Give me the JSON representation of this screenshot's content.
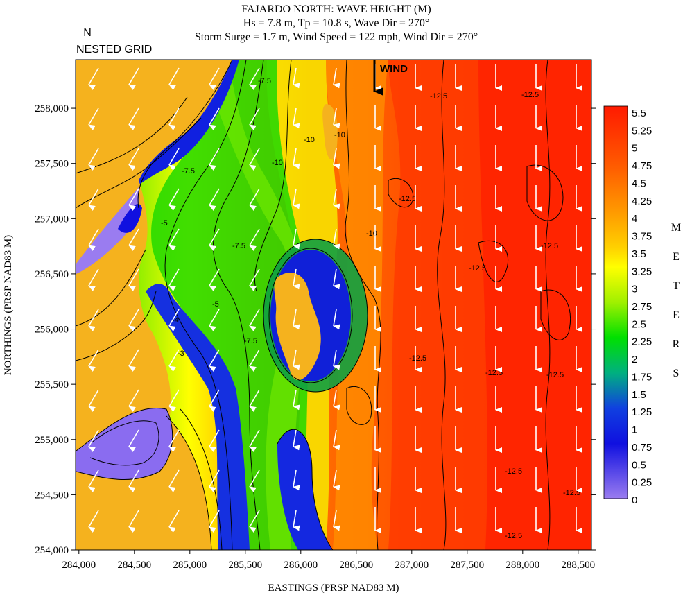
{
  "title": {
    "line1": "FAJARDO NORTH: WAVE HEIGHT (M)",
    "line2": "Hs = 7.8 m, Tp = 10.8 s, Wave Dir = 270°",
    "line3": "Storm Surge = 1.7 m, Wind Speed = 122 mph, Wind Dir = 270°"
  },
  "north_label": "N",
  "grid_label": "NESTED GRID",
  "wind_label": "WIND",
  "axes": {
    "xlabel": "EASTINGS (PRSP NAD83 M)",
    "ylabel": "NORTHINGS (PRSP NAD83 M)",
    "x_ticks": [
      "284,000",
      "284,500",
      "285,000",
      "285,500",
      "286,000",
      "286,500",
      "287,000",
      "287,500",
      "288,000",
      "288,500"
    ],
    "y_ticks": [
      "254,000",
      "254,500",
      "255,000",
      "255,500",
      "256,000",
      "256,500",
      "257,000",
      "257,500",
      "258,000"
    ],
    "xlim": [
      283970,
      288620
    ],
    "ylim": [
      254000,
      258440
    ]
  },
  "colorbar": {
    "unit_letters": [
      "M",
      "E",
      "T",
      "E",
      "R",
      "S"
    ],
    "labels": [
      "5.5",
      "5.25",
      "5",
      "4.75",
      "4.5",
      "4.25",
      "4",
      "3.75",
      "3.5",
      "3.25",
      "3",
      "2.75",
      "2.5",
      "2.25",
      "2",
      "1.75",
      "1.5",
      "1.25",
      "1",
      "0.75",
      "0.5",
      "0.25",
      "0"
    ],
    "colors": {
      "max": "#ff1a00",
      "orange": "#ff7a00",
      "yellow": "#ffff00",
      "green": "#00e000",
      "blue": "#1010e0",
      "min": "#9a7cf0",
      "land": "#f5b21e"
    }
  },
  "contour_labels": [
    "-7.5",
    "-10",
    "-7.5",
    "-5",
    "-7.5",
    "-10",
    "-10",
    "-12.5",
    "-12.5",
    "-10",
    "-7.5",
    "-5",
    "-4",
    "-3",
    "-12.5",
    "-12.5",
    "-12.5",
    "-12.5",
    "-12.5",
    "-12.5",
    "-12.5",
    "-12.5",
    "-12.5"
  ]
}
